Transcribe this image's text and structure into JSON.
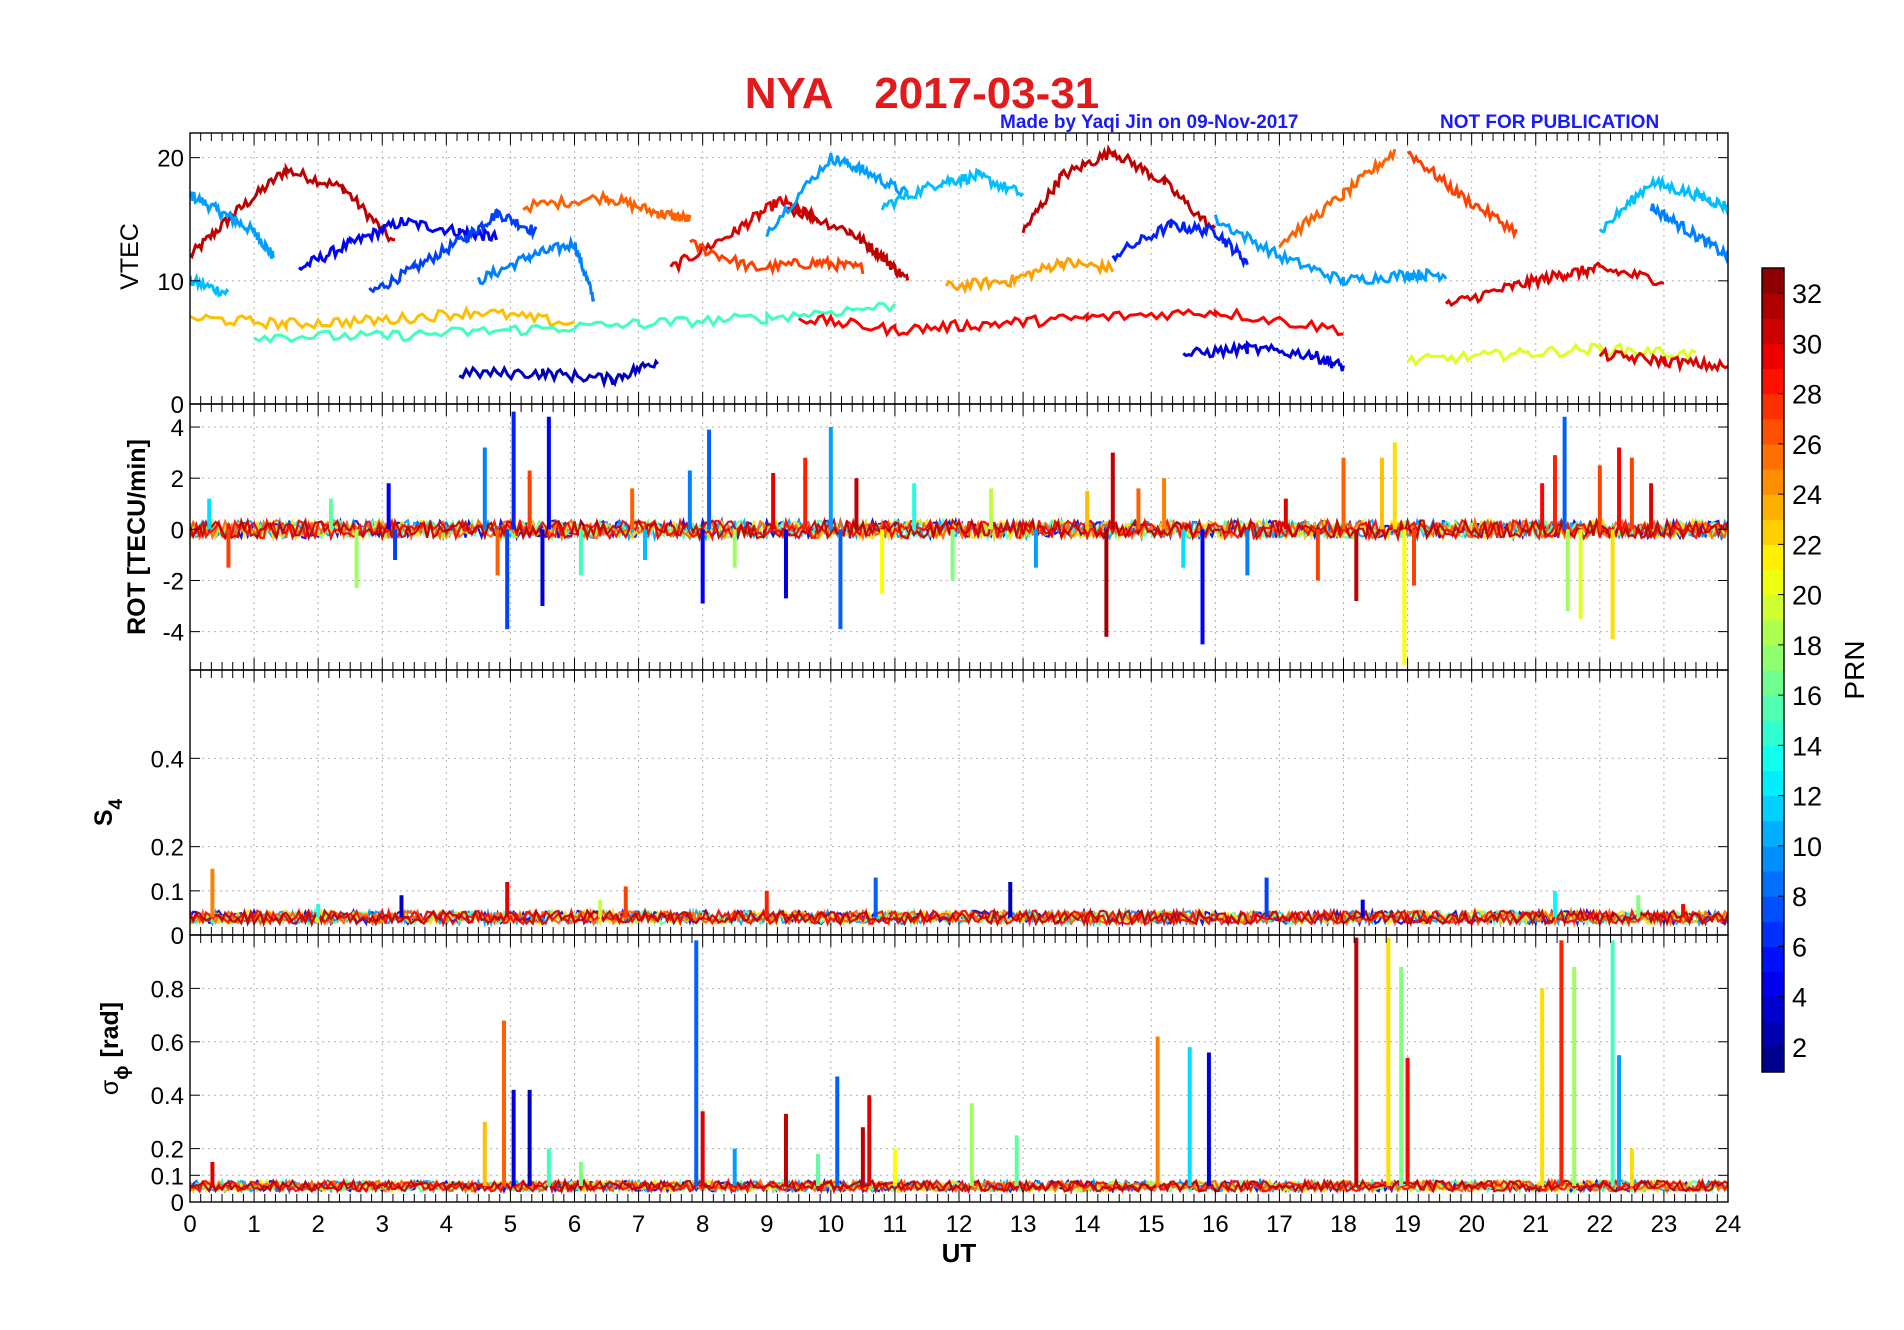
{
  "figure": {
    "station": "NYA",
    "date": "2017-03-31",
    "credit": "Made by Yaqi Jin on 09-Nov-2017",
    "notice": "NOT FOR PUBLICATION",
    "title_color": "#e31a1c",
    "credit_color": "#1a1aff"
  },
  "chart_data": [
    {
      "type": "line",
      "panel": "VTEC",
      "ylabel": "VTEC",
      "xlabel": "",
      "xlim": [
        0,
        24
      ],
      "ylim": [
        0,
        22
      ],
      "yticks": [
        0,
        10,
        20
      ],
      "ytick_labels": [
        "0",
        "10",
        "20"
      ],
      "grid": true,
      "series": [
        {
          "name": "PRN 31",
          "prn": 31,
          "x": [
            0,
            0.7,
            1.5,
            2.4,
            3.2
          ],
          "y": [
            12,
            15.5,
            19,
            17.5,
            13
          ]
        },
        {
          "name": "PRN 10",
          "prn": 10,
          "x": [
            0,
            0.5,
            1.0,
            1.3
          ],
          "y": [
            17,
            15.5,
            14,
            12
          ]
        },
        {
          "name": "PRN 11",
          "prn": 11,
          "x": [
            0,
            0.6
          ],
          "y": [
            10,
            9
          ]
        },
        {
          "name": "PRN 5",
          "prn": 5,
          "x": [
            1.7,
            2.5,
            3.3,
            4.2,
            4.8
          ],
          "y": [
            11,
            13,
            14.8,
            14,
            13.5
          ]
        },
        {
          "name": "PRN 7",
          "prn": 7,
          "x": [
            2.8,
            3.5,
            4.3,
            4.8,
            5.4
          ],
          "y": [
            9,
            11,
            13.5,
            15.5,
            14
          ]
        },
        {
          "name": "PRN 9",
          "prn": 9,
          "x": [
            4.5,
            5.3,
            6.0,
            6.3
          ],
          "y": [
            10,
            12,
            13,
            8.5
          ]
        },
        {
          "name": "PRN 26",
          "prn": 26,
          "x": [
            5.2,
            6.5,
            7.3,
            7.8
          ],
          "y": [
            16,
            16.8,
            15.5,
            15
          ]
        },
        {
          "name": "PRN 30",
          "prn": 30,
          "x": [
            7.5,
            8.5,
            9.2,
            9.8
          ],
          "y": [
            11,
            14,
            16.5,
            15
          ]
        },
        {
          "name": "PRN 27",
          "prn": 27,
          "x": [
            7.8,
            8.8,
            9.8,
            10.5
          ],
          "y": [
            13,
            11,
            11.5,
            11
          ]
        },
        {
          "name": "PRN 31",
          "prn": 31,
          "x": [
            9.3,
            10.3,
            10.8,
            11.2
          ],
          "y": [
            16,
            14,
            12,
            10
          ]
        },
        {
          "name": "PRN 10",
          "prn": 10,
          "x": [
            9.0,
            10.0,
            10.5,
            11.2
          ],
          "y": [
            14,
            20,
            19,
            17
          ]
        },
        {
          "name": "PRN 11",
          "prn": 11,
          "x": [
            10.8,
            11.7,
            12.3,
            13.0
          ],
          "y": [
            16,
            18,
            18.5,
            17
          ]
        },
        {
          "name": "PRN 24",
          "prn": 24,
          "x": [
            11.8,
            12.8,
            13.6,
            14.4
          ],
          "y": [
            9.5,
            10,
            11.5,
            11
          ]
        },
        {
          "name": "PRN 31",
          "prn": 31,
          "x": [
            13.0,
            13.6,
            14.4,
            15.2,
            16.0
          ],
          "y": [
            14,
            18.5,
            20.5,
            18,
            14
          ]
        },
        {
          "name": "PRN 6",
          "prn": 6,
          "x": [
            14.4,
            15.3,
            16.0,
            16.5
          ],
          "y": [
            12,
            14.5,
            14,
            11.5
          ]
        },
        {
          "name": "PRN 10",
          "prn": 10,
          "x": [
            16.0,
            17.0,
            18.0,
            19.0,
            19.6
          ],
          "y": [
            15,
            12,
            10,
            10.5,
            10.5
          ]
        },
        {
          "name": "PRN 26",
          "prn": 26,
          "x": [
            17.0,
            18.0,
            18.8
          ],
          "y": [
            13,
            17,
            20.5
          ]
        },
        {
          "name": "PRN 27",
          "prn": 27,
          "x": [
            19.0,
            19.8,
            20.7
          ],
          "y": [
            20.5,
            17,
            14
          ]
        },
        {
          "name": "PRN 30",
          "prn": 30,
          "x": [
            19.6,
            20.6,
            21.4,
            22.0,
            23.0
          ],
          "y": [
            8,
            9.5,
            10.5,
            11,
            10
          ]
        },
        {
          "name": "PRN 11",
          "prn": 11,
          "x": [
            22.0,
            22.8,
            23.5,
            24.0
          ],
          "y": [
            14,
            18,
            17,
            16
          ]
        },
        {
          "name": "PRN 9",
          "prn": 9,
          "x": [
            22.8,
            23.4,
            24.0
          ],
          "y": [
            16,
            14,
            12
          ]
        },
        {
          "name": "PRN 23",
          "prn": 23,
          "x": [
            0,
            1.5,
            3.0,
            4.5,
            6.0
          ],
          "y": [
            7,
            6.5,
            6.8,
            7.5,
            6.5
          ]
        },
        {
          "name": "PRN 3",
          "prn": 3,
          "x": [
            4.2,
            5.5,
            6.6,
            7.3
          ],
          "y": [
            2.5,
            2.5,
            2,
            3.5
          ]
        },
        {
          "name": "PRN 15",
          "prn": 15,
          "x": [
            1.0,
            3.0,
            5.0,
            7.0,
            9.0,
            11.0
          ],
          "y": [
            5.5,
            5.5,
            6,
            6.5,
            7,
            8
          ]
        },
        {
          "name": "PRN 29",
          "prn": 29,
          "x": [
            9.5,
            11.0,
            12.5,
            14.0,
            16.0,
            18.0
          ],
          "y": [
            7,
            6,
            6.5,
            7,
            7.5,
            6
          ]
        },
        {
          "name": "PRN 4",
          "prn": 4,
          "x": [
            15.5,
            16.5,
            17.5,
            18.0
          ],
          "y": [
            4,
            4.5,
            4,
            3
          ]
        },
        {
          "name": "PRN 20",
          "prn": 20,
          "x": [
            19.0,
            20.5,
            22.0,
            23.5
          ],
          "y": [
            3.5,
            4,
            4.5,
            4
          ]
        },
        {
          "name": "PRN 30",
          "prn": 30,
          "x": [
            22.0,
            23.0,
            24.0
          ],
          "y": [
            4,
            3.5,
            3
          ]
        }
      ]
    },
    {
      "type": "line",
      "panel": "ROT",
      "ylabel": "ROT [TECU/min]",
      "xlabel": "",
      "xlim": [
        0,
        24
      ],
      "ylim": [
        -5.5,
        4.9
      ],
      "yticks": [
        -4,
        -2,
        0,
        2,
        4
      ],
      "ytick_labels": [
        "-4",
        "-2",
        "0",
        "2",
        "4"
      ],
      "grid": true,
      "spikes": [
        {
          "x": 0.3,
          "y": 1.2,
          "prn": 12
        },
        {
          "x": 0.6,
          "y": -1.5,
          "prn": 27
        },
        {
          "x": 2.2,
          "y": 1.2,
          "prn": 16
        },
        {
          "x": 2.6,
          "y": -2.3,
          "prn": 18
        },
        {
          "x": 3.1,
          "y": 1.8,
          "prn": 5
        },
        {
          "x": 3.2,
          "y": -1.2,
          "prn": 7
        },
        {
          "x": 4.6,
          "y": 3.2,
          "prn": 9
        },
        {
          "x": 4.8,
          "y": -1.8,
          "prn": 26
        },
        {
          "x": 4.95,
          "y": -3.9,
          "prn": 7
        },
        {
          "x": 5.05,
          "y": 4.6,
          "prn": 6
        },
        {
          "x": 5.3,
          "y": 2.3,
          "prn": 27
        },
        {
          "x": 5.5,
          "y": -3.0,
          "prn": 4
        },
        {
          "x": 5.6,
          "y": 4.4,
          "prn": 5
        },
        {
          "x": 6.1,
          "y": -1.8,
          "prn": 15
        },
        {
          "x": 6.9,
          "y": 1.6,
          "prn": 26
        },
        {
          "x": 7.1,
          "y": -1.2,
          "prn": 11
        },
        {
          "x": 7.8,
          "y": 2.3,
          "prn": 9
        },
        {
          "x": 8.0,
          "y": -2.9,
          "prn": 5
        },
        {
          "x": 8.1,
          "y": 3.9,
          "prn": 8
        },
        {
          "x": 8.5,
          "y": -1.5,
          "prn": 18
        },
        {
          "x": 9.1,
          "y": 2.2,
          "prn": 30
        },
        {
          "x": 9.3,
          "y": -2.7,
          "prn": 4
        },
        {
          "x": 9.6,
          "y": 2.8,
          "prn": 28
        },
        {
          "x": 10.0,
          "y": 4.0,
          "prn": 10
        },
        {
          "x": 10.15,
          "y": -3.9,
          "prn": 8
        },
        {
          "x": 10.4,
          "y": 2.0,
          "prn": 31
        },
        {
          "x": 10.8,
          "y": -2.5,
          "prn": 21
        },
        {
          "x": 11.3,
          "y": 1.8,
          "prn": 14
        },
        {
          "x": 11.9,
          "y": -2.0,
          "prn": 17
        },
        {
          "x": 12.5,
          "y": 1.6,
          "prn": 19
        },
        {
          "x": 13.2,
          "y": -1.5,
          "prn": 10
        },
        {
          "x": 14.0,
          "y": 1.5,
          "prn": 23
        },
        {
          "x": 14.3,
          "y": -4.2,
          "prn": 32
        },
        {
          "x": 14.4,
          "y": 3.0,
          "prn": 31
        },
        {
          "x": 14.8,
          "y": 1.6,
          "prn": 26
        },
        {
          "x": 15.2,
          "y": 2.0,
          "prn": 25
        },
        {
          "x": 15.5,
          "y": -1.5,
          "prn": 12
        },
        {
          "x": 15.8,
          "y": -4.5,
          "prn": 5
        },
        {
          "x": 16.5,
          "y": -1.8,
          "prn": 9
        },
        {
          "x": 17.1,
          "y": 1.2,
          "prn": 30
        },
        {
          "x": 17.6,
          "y": -2.0,
          "prn": 27
        },
        {
          "x": 18.0,
          "y": 2.8,
          "prn": 26
        },
        {
          "x": 18.2,
          "y": -2.8,
          "prn": 31
        },
        {
          "x": 18.6,
          "y": 2.8,
          "prn": 23
        },
        {
          "x": 18.8,
          "y": 3.4,
          "prn": 22
        },
        {
          "x": 18.95,
          "y": -5.3,
          "prn": 21
        },
        {
          "x": 19.1,
          "y": -2.2,
          "prn": 27
        },
        {
          "x": 21.1,
          "y": 1.8,
          "prn": 29
        },
        {
          "x": 21.3,
          "y": 2.9,
          "prn": 28
        },
        {
          "x": 21.45,
          "y": 4.4,
          "prn": 8
        },
        {
          "x": 21.5,
          "y": -3.2,
          "prn": 18
        },
        {
          "x": 21.7,
          "y": -3.5,
          "prn": 20
        },
        {
          "x": 22.0,
          "y": 2.5,
          "prn": 27
        },
        {
          "x": 22.2,
          "y": -4.3,
          "prn": 22
        },
        {
          "x": 22.3,
          "y": 3.2,
          "prn": 29
        },
        {
          "x": 22.5,
          "y": 2.8,
          "prn": 27
        },
        {
          "x": 22.8,
          "y": 1.8,
          "prn": 30
        }
      ]
    },
    {
      "type": "line",
      "panel": "S4",
      "ylabel": "S",
      "ylabel_sub": "4",
      "xlabel": "",
      "xlim": [
        0,
        24
      ],
      "ylim": [
        0,
        0.6
      ],
      "yticks": [
        0,
        0.1,
        0.2,
        0.4
      ],
      "ytick_labels": [
        "0",
        "0.1",
        "0.2",
        "0.4"
      ],
      "grid": true,
      "baseline": 0.04,
      "spikes": [
        {
          "x": 0.35,
          "y": 0.15,
          "prn": 25
        },
        {
          "x": 2.0,
          "y": 0.07,
          "prn": 14
        },
        {
          "x": 3.3,
          "y": 0.09,
          "prn": 3
        },
        {
          "x": 4.95,
          "y": 0.12,
          "prn": 30
        },
        {
          "x": 6.4,
          "y": 0.08,
          "prn": 19
        },
        {
          "x": 6.8,
          "y": 0.11,
          "prn": 27
        },
        {
          "x": 9.0,
          "y": 0.1,
          "prn": 28
        },
        {
          "x": 10.7,
          "y": 0.13,
          "prn": 8
        },
        {
          "x": 12.8,
          "y": 0.12,
          "prn": 3
        },
        {
          "x": 16.8,
          "y": 0.13,
          "prn": 7
        },
        {
          "x": 18.3,
          "y": 0.08,
          "prn": 4
        },
        {
          "x": 21.3,
          "y": 0.1,
          "prn": 13
        },
        {
          "x": 22.6,
          "y": 0.09,
          "prn": 17
        },
        {
          "x": 23.3,
          "y": 0.07,
          "prn": 29
        }
      ]
    },
    {
      "type": "line",
      "panel": "SigmaPhi",
      "ylabel": "σ",
      "ylabel_sub": "ϕ",
      "ylabel_unit": "[rad]",
      "xlabel": "UT",
      "xlim": [
        0,
        24
      ],
      "ylim": [
        0,
        1.0
      ],
      "yticks": [
        0,
        0.1,
        0.2,
        0.4,
        0.6,
        0.8
      ],
      "ytick_labels": [
        "0",
        "0.1",
        "0.2",
        "0.4",
        "0.6",
        "0.8"
      ],
      "xticks": [
        0,
        1,
        2,
        3,
        4,
        5,
        6,
        7,
        8,
        9,
        10,
        11,
        12,
        13,
        14,
        15,
        16,
        17,
        18,
        19,
        20,
        21,
        22,
        23,
        24
      ],
      "xtick_labels": [
        "0",
        "1",
        "2",
        "3",
        "4",
        "5",
        "6",
        "7",
        "8",
        "9",
        "10",
        "11",
        "12",
        "13",
        "14",
        "15",
        "16",
        "17",
        "18",
        "19",
        "20",
        "21",
        "22",
        "23",
        "24"
      ],
      "grid": true,
      "baseline": 0.06,
      "spikes": [
        {
          "x": 0.35,
          "y": 0.15,
          "prn": 30
        },
        {
          "x": 4.6,
          "y": 0.3,
          "prn": 23
        },
        {
          "x": 4.9,
          "y": 0.68,
          "prn": 26
        },
        {
          "x": 5.05,
          "y": 0.42,
          "prn": 4
        },
        {
          "x": 5.3,
          "y": 0.42,
          "prn": 3
        },
        {
          "x": 5.6,
          "y": 0.2,
          "prn": 15
        },
        {
          "x": 6.1,
          "y": 0.15,
          "prn": 17
        },
        {
          "x": 7.9,
          "y": 0.98,
          "prn": 8
        },
        {
          "x": 8.0,
          "y": 0.34,
          "prn": 30
        },
        {
          "x": 8.5,
          "y": 0.2,
          "prn": 10
        },
        {
          "x": 9.3,
          "y": 0.33,
          "prn": 31
        },
        {
          "x": 9.8,
          "y": 0.18,
          "prn": 16
        },
        {
          "x": 10.1,
          "y": 0.47,
          "prn": 8
        },
        {
          "x": 10.5,
          "y": 0.28,
          "prn": 31
        },
        {
          "x": 10.6,
          "y": 0.4,
          "prn": 30
        },
        {
          "x": 11.0,
          "y": 0.2,
          "prn": 21
        },
        {
          "x": 12.2,
          "y": 0.37,
          "prn": 18
        },
        {
          "x": 12.9,
          "y": 0.25,
          "prn": 16
        },
        {
          "x": 15.1,
          "y": 0.62,
          "prn": 25
        },
        {
          "x": 15.6,
          "y": 0.58,
          "prn": 12
        },
        {
          "x": 15.9,
          "y": 0.56,
          "prn": 4
        },
        {
          "x": 18.2,
          "y": 0.99,
          "prn": 31
        },
        {
          "x": 18.7,
          "y": 0.99,
          "prn": 22
        },
        {
          "x": 18.9,
          "y": 0.88,
          "prn": 17
        },
        {
          "x": 19.0,
          "y": 0.54,
          "prn": 29
        },
        {
          "x": 21.1,
          "y": 0.8,
          "prn": 22
        },
        {
          "x": 21.4,
          "y": 0.98,
          "prn": 28
        },
        {
          "x": 21.6,
          "y": 0.88,
          "prn": 18
        },
        {
          "x": 22.2,
          "y": 0.98,
          "prn": 15
        },
        {
          "x": 22.3,
          "y": 0.55,
          "prn": 10
        },
        {
          "x": 22.5,
          "y": 0.2,
          "prn": 22
        }
      ]
    },
    {
      "type": "heatmap",
      "panel": "colorbar",
      "label": "PRN",
      "range": [
        1,
        33
      ],
      "ticks": [
        2,
        4,
        6,
        8,
        10,
        12,
        14,
        16,
        18,
        20,
        22,
        24,
        26,
        28,
        30,
        32
      ],
      "tick_labels": [
        "2",
        "4",
        "6",
        "8",
        "10",
        "12",
        "14",
        "16",
        "18",
        "20",
        "22",
        "24",
        "26",
        "28",
        "30",
        "32"
      ],
      "colormap": "jet"
    }
  ]
}
